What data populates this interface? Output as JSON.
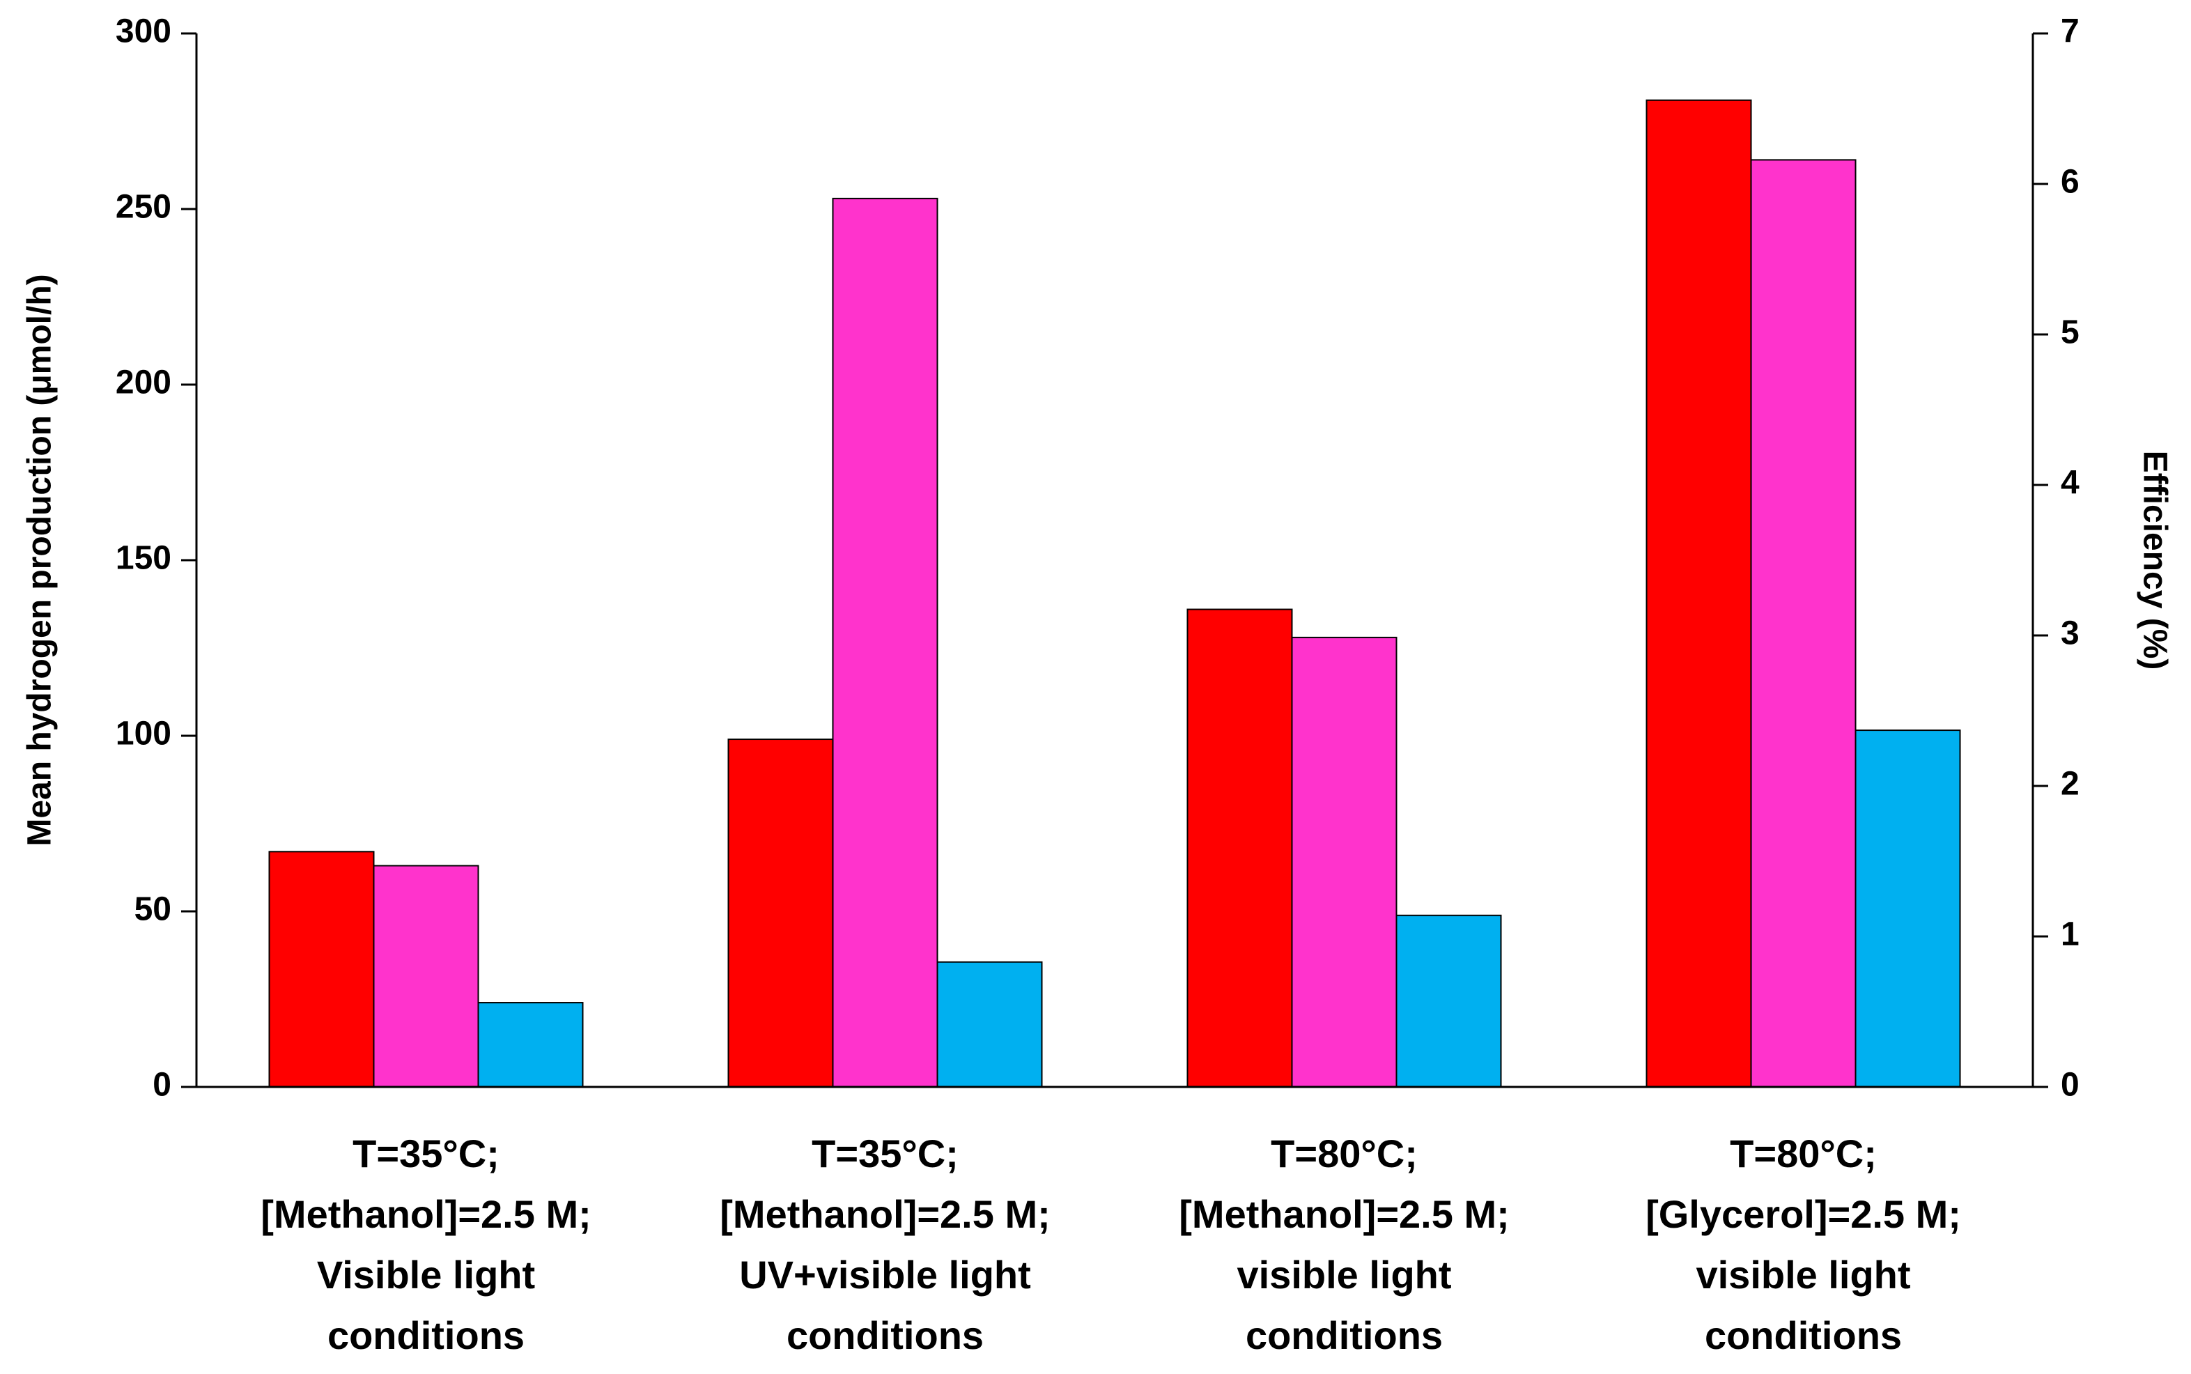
{
  "chart_data": {
    "type": "bar",
    "y_label": "Mean hydrogen production (μmol/h)",
    "y2_label": "Efficiency (%)",
    "categories": [
      [
        "T=35°C;",
        "[Methanol]=2.5 M;",
        "Visible light",
        "conditions"
      ],
      [
        "T=35°C;",
        "[Methanol]=2.5 M;",
        "UV+visible light",
        "conditions"
      ],
      [
        "T=80°C;",
        "[Methanol]=2.5 M;",
        "visible light",
        "conditions"
      ],
      [
        "T=80°C;",
        "[Glycerol]=2.5 M;",
        "visible light",
        "conditions"
      ]
    ],
    "series": [
      {
        "color": "#ff0000",
        "values": [
          67,
          99,
          136,
          281
        ]
      },
      {
        "color": "#ff33cc",
        "values": [
          63,
          253,
          128,
          264
        ]
      },
      {
        "color": "#00b0f0",
        "values": [
          0.56,
          0.83,
          1.14,
          2.37
        ],
        "axis": "y2"
      }
    ],
    "ylim": [
      0,
      300
    ],
    "yticks": [
      0,
      50,
      100,
      150,
      200,
      250,
      300
    ],
    "y2lim": [
      0,
      7
    ],
    "y2ticks": [
      0,
      1,
      2,
      3,
      4,
      5,
      6,
      7
    ],
    "grid": false
  }
}
